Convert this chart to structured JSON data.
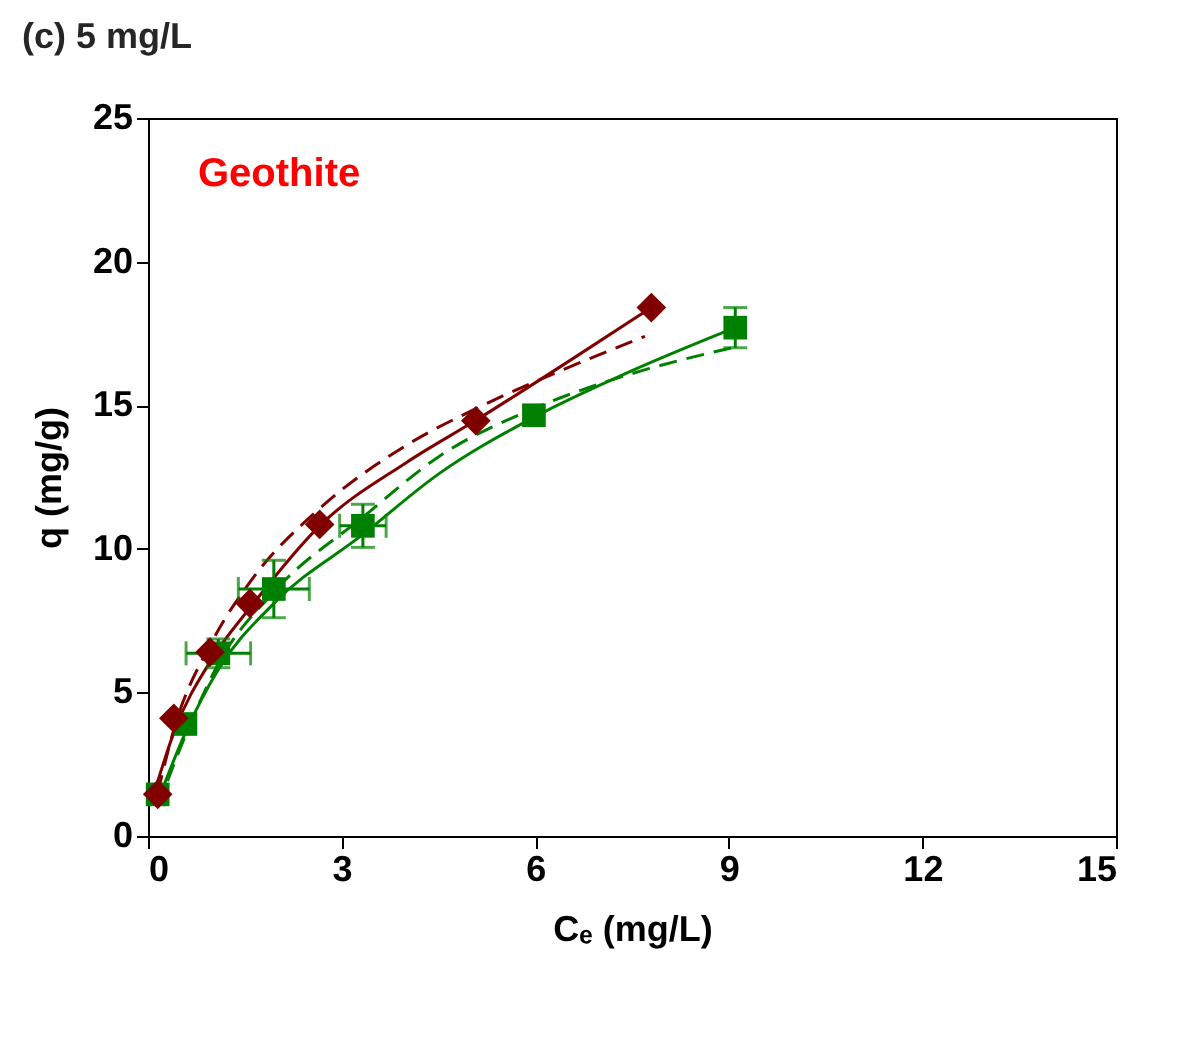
{
  "chart_data": {
    "type": "scatter",
    "title": "(c) 5 mg/L",
    "xlabel": "Cₑ (mg/L)",
    "ylabel": "q (mg/g)",
    "xlim": [
      0,
      15
    ],
    "ylim": [
      0,
      25
    ],
    "xticks": [
      0,
      3,
      6,
      9,
      12,
      15
    ],
    "yticks": [
      0,
      5,
      10,
      15,
      20,
      25
    ],
    "grid": false,
    "annotations": [
      "Geothite"
    ],
    "series": [
      {
        "type": "line",
        "color": "#800000",
        "line_style": "solid",
        "x": [
          0.15,
          0.4,
          1,
          1.6,
          2.66,
          4,
          5.1,
          6.5,
          7.8
        ],
        "values": [
          1.9,
          3.6,
          6.2,
          8.0,
          10.8,
          13.0,
          14.5,
          16.5,
          18.4
        ]
      },
      {
        "type": "line",
        "color": "#800000",
        "line_style": "dashed",
        "x": [
          0.15,
          0.4,
          1,
          1.6,
          2.66,
          4,
          5.1,
          6.5,
          7.7
        ],
        "values": [
          1.5,
          3.7,
          6.8,
          8.9,
          11.4,
          13.6,
          14.9,
          16.3,
          17.4
        ]
      },
      {
        "type": "line",
        "color": "#008000",
        "line_style": "solid",
        "x": [
          0.15,
          0.58,
          1.09,
          1.95,
          3.33,
          4.5,
          6,
          7.5,
          9.1
        ],
        "values": [
          1.2,
          3.6,
          5.8,
          8.1,
          10.5,
          12.6,
          14.6,
          16.2,
          17.7
        ]
      },
      {
        "type": "line",
        "color": "#008000",
        "line_style": "dashed",
        "x": [
          0.15,
          0.58,
          1.09,
          1.95,
          3.33,
          4.5,
          6,
          7.5,
          9.05
        ],
        "values": [
          1.0,
          3.5,
          6.0,
          8.5,
          11.1,
          13.2,
          14.9,
          16.1,
          17.0
        ]
      },
      {
        "color": "#008000",
        "marker": "square",
        "x": [
          0.15,
          0.58,
          1.09,
          1.95,
          3.33,
          5.98,
          9.1
        ],
        "values": [
          1.45,
          3.9,
          6.36,
          8.6,
          10.8,
          14.65,
          17.7
        ],
        "errors": [
          null,
          null,
          0.5,
          1.0,
          0.75,
          null,
          0.7
        ],
        "xerrors": [
          null,
          null,
          0.5,
          0.55,
          0.36,
          null,
          null
        ]
      },
      {
        "color": "#800000",
        "marker": "diamond",
        "x": [
          0.15,
          0.4,
          0.96,
          1.58,
          2.66,
          5.08,
          7.8
        ],
        "values": [
          1.45,
          4.1,
          6.4,
          8.1,
          10.85,
          14.46,
          18.4
        ]
      }
    ]
  }
}
